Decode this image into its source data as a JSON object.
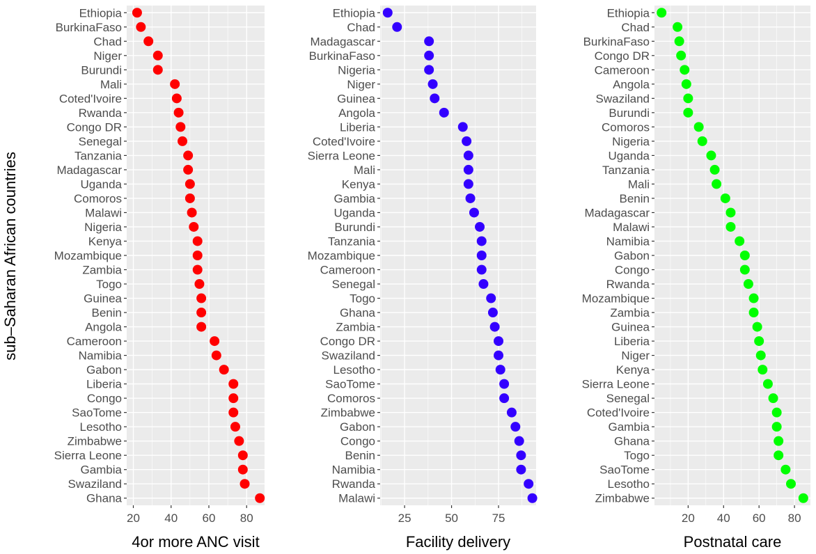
{
  "y_axis_title": "sub–Saharan African countries",
  "chart_data": [
    {
      "type": "scatter",
      "xlabel": "4or more ANC visit",
      "color": "#ff0000",
      "xlim": [
        16.5,
        89.5
      ],
      "xticks": [
        20,
        40,
        60,
        80
      ],
      "categories": [
        "Ethiopia",
        "BurkinaFaso",
        "Chad",
        "Niger",
        "Burundi",
        "Mali",
        "Coted'Ivoire",
        "Rwanda",
        "Congo DR",
        "Senegal",
        "Tanzania",
        "Madagascar",
        "Uganda",
        "Comoros",
        "Malawi",
        "Nigeria",
        "Kenya",
        "Mozambique",
        "Zambia",
        "Togo",
        "Guinea",
        "Benin",
        "Angola",
        "Cameroon",
        "Namibia",
        "Gabon",
        "Liberia",
        "Congo",
        "SaoTome",
        "Lesotho",
        "Zimbabwe",
        "Sierra Leone",
        "Gambia",
        "Swaziland",
        "Ghana"
      ],
      "values": [
        22,
        24,
        28,
        33,
        33,
        42,
        43,
        44,
        45,
        46,
        49,
        49,
        50,
        50,
        51,
        52,
        54,
        54,
        54,
        55,
        56,
        56,
        56,
        63,
        64,
        68,
        73,
        73,
        73,
        74,
        76,
        78,
        78,
        79,
        87
      ]
    },
    {
      "type": "scatter",
      "xlabel": "Facility delivery",
      "color": "#3300ff",
      "xlim": [
        12,
        95
      ],
      "xticks": [
        25,
        50,
        75
      ],
      "categories": [
        "Ethiopia",
        "Chad",
        "Madagascar",
        "BurkinaFaso",
        "Nigeria",
        "Niger",
        "Guinea",
        "Angola",
        "Liberia",
        "Coted'Ivoire",
        "Sierra Leone",
        "Mali",
        "Kenya",
        "Gambia",
        "Uganda",
        "Burundi",
        "Tanzania",
        "Mozambique",
        "Cameroon",
        "Senegal",
        "Togo",
        "Ghana",
        "Zambia",
        "Congo DR",
        "Swaziland",
        "Lesotho",
        "SaoTome",
        "Comoros",
        "Zimbabwe",
        "Gabon",
        "Congo",
        "Benin",
        "Namibia",
        "Rwanda",
        "Malawi"
      ],
      "values": [
        16,
        21,
        38,
        38,
        38,
        40,
        41,
        46,
        56,
        58,
        59,
        59,
        59,
        60,
        62,
        65,
        66,
        66,
        66,
        67,
        71,
        72,
        73,
        75,
        75,
        76,
        78,
        78,
        82,
        84,
        86,
        87,
        87,
        91,
        93
      ]
    },
    {
      "type": "scatter",
      "xlabel": "Postnatal care",
      "color": "#00ff00",
      "xlim": [
        1,
        89
      ],
      "xticks": [
        20,
        40,
        60,
        80
      ],
      "categories": [
        "Ethiopia",
        "Chad",
        "BurkinaFaso",
        "Congo DR",
        "Cameroon",
        "Angola",
        "Swaziland",
        "Burundi",
        "Comoros",
        "Nigeria",
        "Uganda",
        "Tanzania",
        "Mali",
        "Benin",
        "Madagascar",
        "Malawi",
        "Namibia",
        "Gabon",
        "Congo",
        "Rwanda",
        "Mozambique",
        "Zambia",
        "Guinea",
        "Liberia",
        "Niger",
        "Kenya",
        "Sierra Leone",
        "Senegal",
        "Coted'Ivoire",
        "Gambia",
        "Ghana",
        "Togo",
        "SaoTome",
        "Lesotho",
        "Zimbabwe"
      ],
      "values": [
        5,
        14,
        15,
        16,
        18,
        19,
        20,
        20,
        26,
        28,
        33,
        35,
        36,
        41,
        44,
        44,
        49,
        52,
        52,
        54,
        57,
        57,
        59,
        60,
        61,
        62,
        65,
        68,
        70,
        70,
        71,
        71,
        75,
        78,
        85
      ]
    }
  ]
}
